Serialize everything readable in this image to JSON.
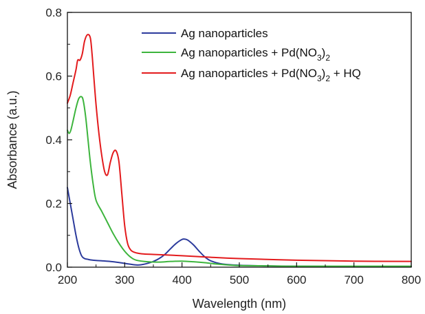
{
  "chart_data": {
    "type": "line",
    "xlabel": "Wavelength (nm)",
    "ylabel": "Absorbance (a.u.)",
    "xlim": [
      200,
      800
    ],
    "ylim": [
      0.0,
      0.8
    ],
    "xticks": [
      200,
      300,
      400,
      500,
      600,
      700,
      800
    ],
    "xtick_labels": [
      "200",
      "300",
      "400",
      "500",
      "600",
      "700",
      "800"
    ],
    "yticks": [
      0.0,
      0.2,
      0.4,
      0.6,
      0.8
    ],
    "ytick_labels": [
      "0.0",
      "0.2",
      "0.4",
      "0.6",
      "0.8"
    ],
    "grid": false,
    "legend_position": "top-right",
    "series": [
      {
        "name": "Ag nanoparticles",
        "name_segments": [
          {
            "text": "Ag nanoparticles",
            "sub": false
          }
        ],
        "color": "#2b3a9c",
        "x": [
          200,
          205,
          210,
          215,
          220,
          225,
          230,
          235,
          240,
          250,
          260,
          280,
          300,
          320,
          330,
          340,
          350,
          360,
          370,
          380,
          390,
          400,
          405,
          410,
          420,
          430,
          440,
          450,
          470,
          500,
          550,
          600,
          700,
          800
        ],
        "y": [
          0.25,
          0.2,
          0.15,
          0.1,
          0.06,
          0.035,
          0.027,
          0.025,
          0.023,
          0.021,
          0.02,
          0.017,
          0.012,
          0.007,
          0.008,
          0.012,
          0.018,
          0.027,
          0.04,
          0.058,
          0.075,
          0.087,
          0.088,
          0.085,
          0.07,
          0.05,
          0.032,
          0.02,
          0.01,
          0.006,
          0.004,
          0.003,
          0.002,
          0.002
        ]
      },
      {
        "name": "Ag nanoparticles + Pd(NO3)2",
        "name_segments": [
          {
            "text": "Ag nanoparticles + Pd(NO",
            "sub": false
          },
          {
            "text": "3",
            "sub": true
          },
          {
            "text": ")",
            "sub": false
          },
          {
            "text": "2",
            "sub": true
          }
        ],
        "color": "#3cb43c",
        "x": [
          200,
          203,
          206,
          210,
          215,
          220,
          225,
          228,
          232,
          236,
          240,
          245,
          250,
          260,
          270,
          280,
          290,
          300,
          310,
          320,
          340,
          360,
          380,
          400,
          420,
          440,
          460,
          480,
          500,
          550,
          600,
          700,
          800
        ],
        "y": [
          0.43,
          0.42,
          0.43,
          0.46,
          0.5,
          0.53,
          0.535,
          0.52,
          0.47,
          0.4,
          0.33,
          0.26,
          0.21,
          0.175,
          0.14,
          0.105,
          0.075,
          0.05,
          0.032,
          0.022,
          0.017,
          0.016,
          0.018,
          0.019,
          0.017,
          0.014,
          0.01,
          0.007,
          0.005,
          0.004,
          0.003,
          0.003,
          0.003
        ]
      },
      {
        "name": "Ag nanoparticles + Pd(NO3)2 + HQ",
        "name_segments": [
          {
            "text": "Ag nanoparticles + Pd(NO",
            "sub": false
          },
          {
            "text": "3",
            "sub": true
          },
          {
            "text": ")",
            "sub": false
          },
          {
            "text": "2",
            "sub": true
          },
          {
            "text": " + HQ",
            "sub": false
          }
        ],
        "color": "#e31a1c",
        "x": [
          200,
          205,
          210,
          215,
          218,
          222,
          226,
          230,
          235,
          240,
          243,
          246,
          250,
          255,
          260,
          265,
          270,
          275,
          280,
          285,
          290,
          295,
          300,
          305,
          310,
          315,
          320,
          330,
          350,
          400,
          450,
          500,
          600,
          700,
          800
        ],
        "y": [
          0.515,
          0.54,
          0.58,
          0.62,
          0.65,
          0.65,
          0.67,
          0.71,
          0.73,
          0.72,
          0.67,
          0.6,
          0.51,
          0.42,
          0.35,
          0.3,
          0.29,
          0.33,
          0.36,
          0.365,
          0.33,
          0.23,
          0.13,
          0.075,
          0.055,
          0.048,
          0.045,
          0.042,
          0.04,
          0.036,
          0.031,
          0.027,
          0.022,
          0.019,
          0.018
        ]
      }
    ]
  }
}
